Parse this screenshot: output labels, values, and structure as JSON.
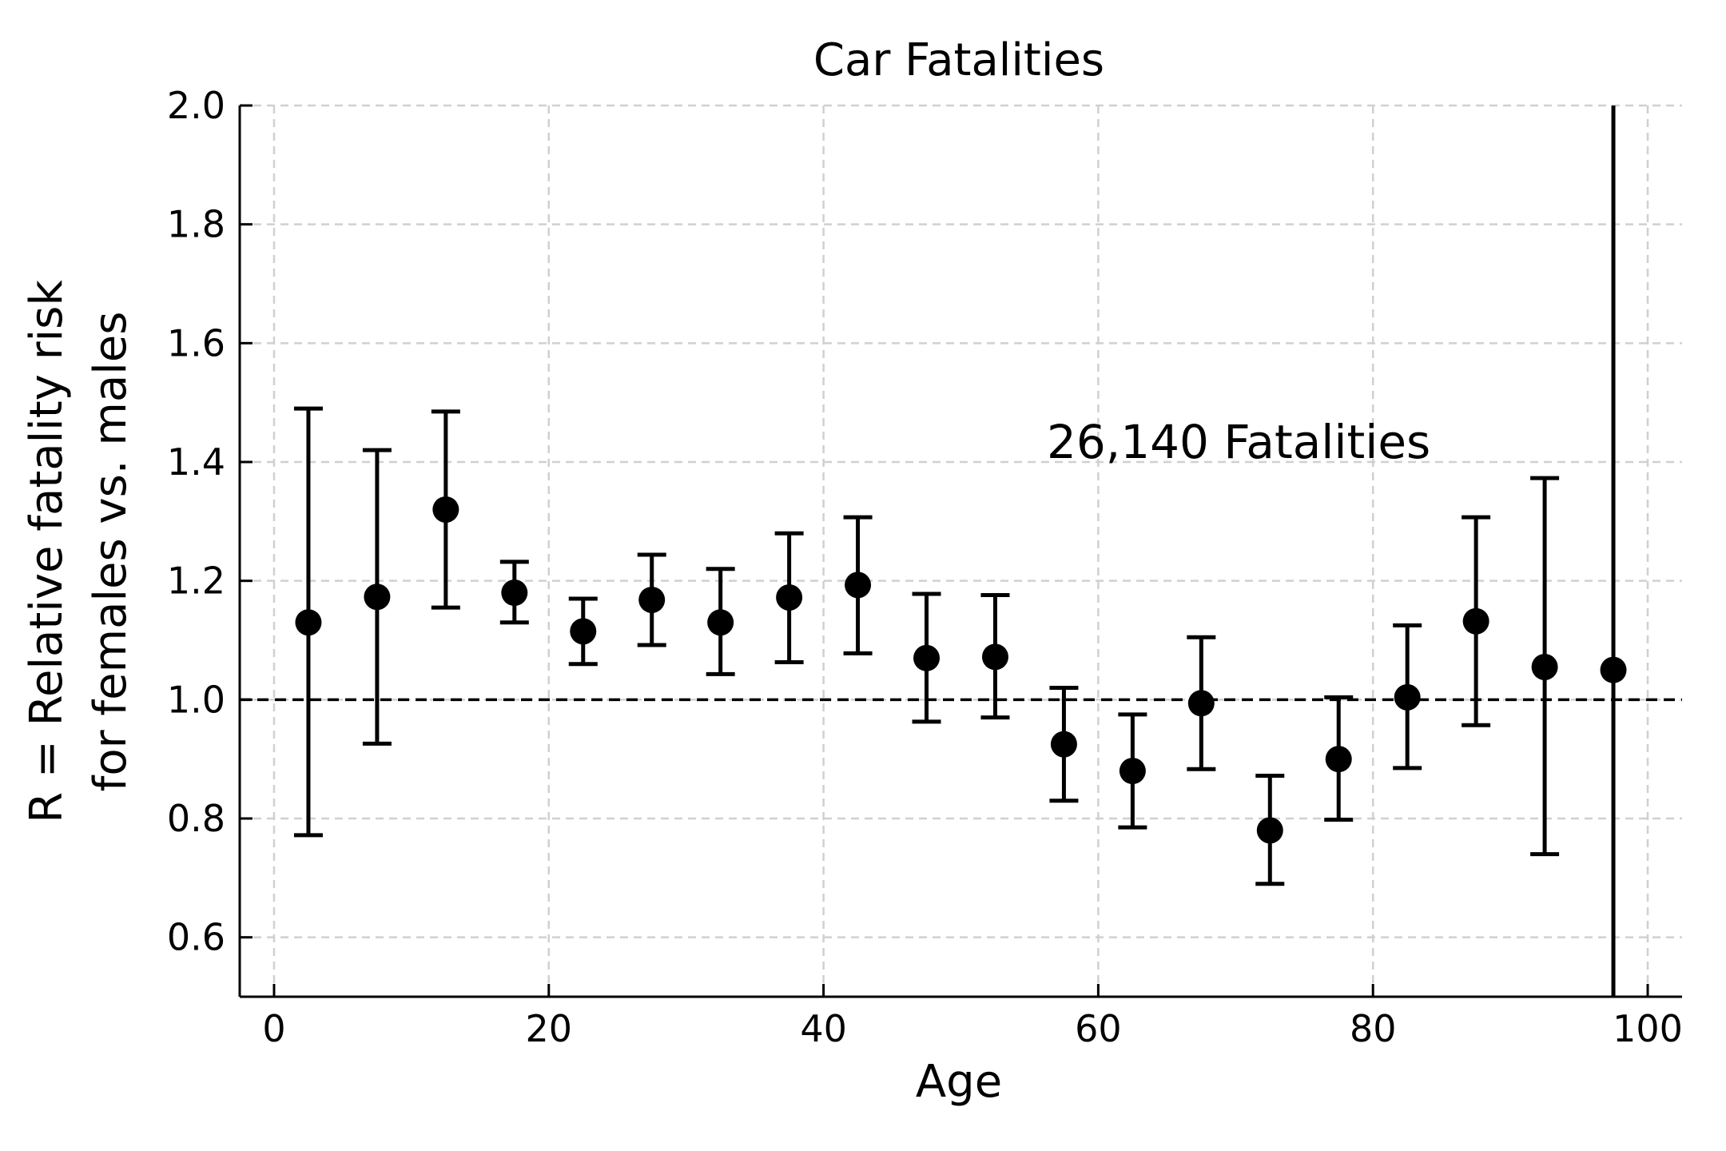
{
  "chart_data": {
    "type": "scatter",
    "title": "Car Fatalities",
    "xlabel": "Age",
    "ylabel_line1": "R = Relative fatality risk",
    "ylabel_line2": "for females vs. males",
    "annotation": "26,140 Fatalities",
    "xlim": [
      -2.5,
      102.5
    ],
    "ylim": [
      0.5,
      2.0
    ],
    "xticks": [
      0,
      20,
      40,
      60,
      80,
      100
    ],
    "xtick_labels": [
      "0",
      "20",
      "40",
      "60",
      "80",
      "100"
    ],
    "yticks": [
      0.6,
      0.8,
      1.0,
      1.2,
      1.4,
      1.6,
      1.8,
      2.0
    ],
    "ytick_labels": [
      "0.6",
      "0.8",
      "1.0",
      "1.2",
      "1.4",
      "1.6",
      "1.8",
      "2.0"
    ],
    "grid": true,
    "reference_line": 1.0,
    "series": [
      {
        "x": [
          2.5,
          7.5,
          12.5,
          17.5,
          22.5,
          27.5,
          32.5,
          37.5,
          42.5,
          47.5,
          52.5,
          57.5,
          62.5,
          67.5,
          72.5,
          77.5,
          82.5,
          87.5,
          92.5,
          97.5
        ],
        "y": [
          1.13,
          1.173,
          1.32,
          1.18,
          1.115,
          1.168,
          1.13,
          1.172,
          1.193,
          1.07,
          1.072,
          0.925,
          0.88,
          0.994,
          0.78,
          0.9,
          1.004,
          1.132,
          1.055,
          1.05
        ],
        "y_low": [
          0.772,
          0.926,
          1.155,
          1.13,
          1.06,
          1.092,
          1.043,
          1.063,
          1.078,
          0.963,
          0.97,
          0.83,
          0.785,
          0.883,
          0.69,
          0.798,
          0.885,
          0.957,
          0.74,
          0.5
        ],
        "y_high": [
          1.49,
          1.42,
          1.485,
          1.232,
          1.17,
          1.244,
          1.22,
          1.28,
          1.307,
          1.178,
          1.176,
          1.02,
          0.975,
          1.105,
          0.872,
          1.004,
          1.125,
          1.307,
          1.373,
          2.0
        ]
      }
    ]
  }
}
